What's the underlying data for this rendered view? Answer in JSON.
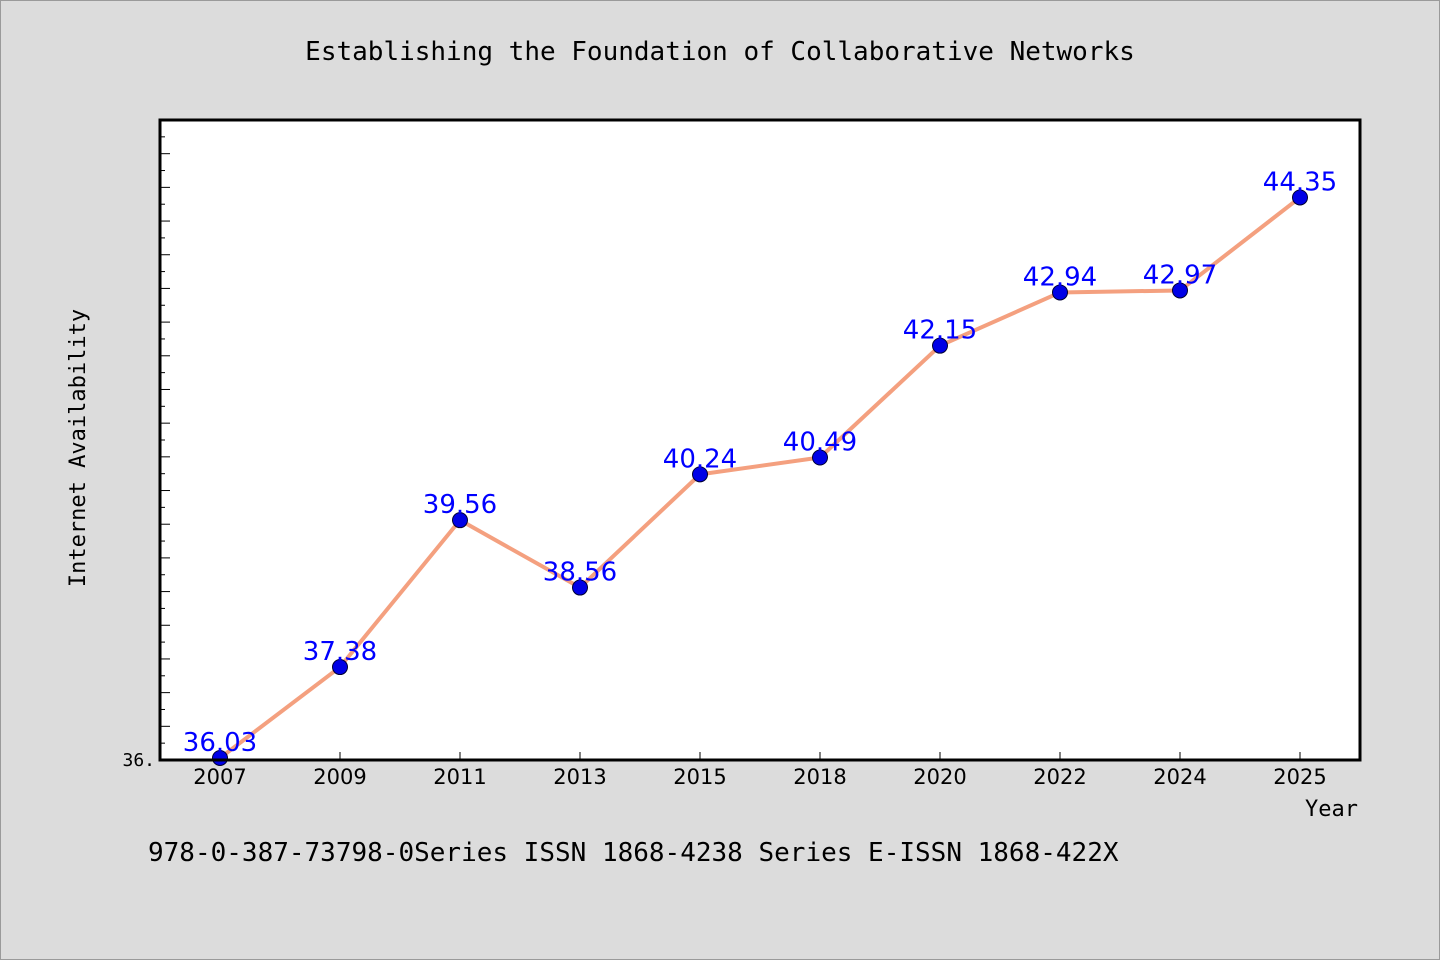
{
  "chart_data": {
    "type": "line",
    "title": "Establishing the Foundation of Collaborative Networks",
    "xlabel": "Year",
    "ylabel": "Internet Availability",
    "x": [
      "2007",
      "2009",
      "2011",
      "2013",
      "2015",
      "2018",
      "2020",
      "2022",
      "2024",
      "2025"
    ],
    "series": [
      {
        "values": [
          36.03,
          37.38,
          39.56,
          38.56,
          40.24,
          40.49,
          42.15,
          42.94,
          42.97,
          44.35
        ],
        "data_labels": [
          "36.03",
          "37.38",
          "39.56",
          "38.56",
          "40.24",
          "40.49",
          "42.15",
          "42.94",
          "42.97",
          "44.35"
        ]
      }
    ],
    "ylim": [
      36.0,
      45.5
    ],
    "y_tick_labels": [
      "36."
    ],
    "grid": false,
    "footer": "978-0-387-73798-0Series ISSN 1868-4238 Series E-ISSN 1868-422X",
    "colors": {
      "background": "#dcdcdc",
      "plot_area": "#ffffff",
      "line": "#f4a07f",
      "marker": "#0000e6",
      "data_label": "#0000ff",
      "text": "#000000"
    }
  }
}
